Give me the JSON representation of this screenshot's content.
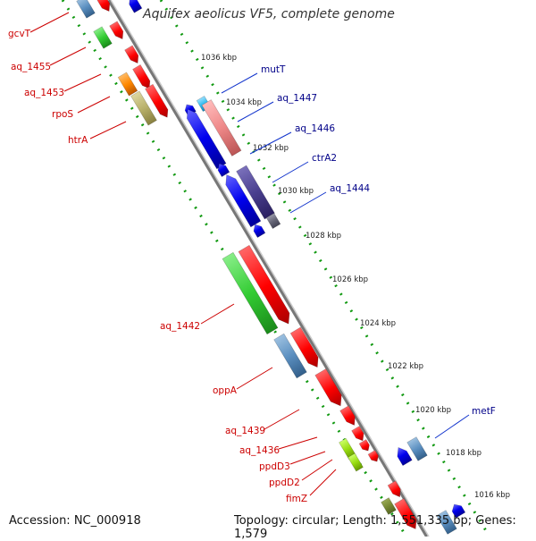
{
  "header": {
    "title": "Aquifex aeolicus VF5, complete genome"
  },
  "footer": {
    "accession": "Accession: NC_000918",
    "topology": "Topology: circular; Length: 1,551,335 bp; Genes: 1,579"
  },
  "genes_left": [
    "gcvT",
    "aq_1455",
    "aq_1453",
    "rpoS",
    "htrA",
    "aq_1442",
    "oppA",
    "aq_1439",
    "aq_1436",
    "ppdD3",
    "ppdD2",
    "fimZ"
  ],
  "genes_right": [
    "mutT",
    "aq_1447",
    "aq_1446",
    "ctrA2",
    "aq_1444",
    "metF"
  ],
  "ticks": [
    "1036 kbp",
    "1034 kbp",
    "1032 kbp",
    "1030 kbp",
    "1028 kbp",
    "1026 kbp",
    "1024 kbp",
    "1022 kbp",
    "1020 kbp",
    "1018 kbp",
    "1016 kbp"
  ],
  "colors": {
    "forward_gene": "#ff0000",
    "reverse_gene": "#0000ff",
    "green_gene": "#33cc33",
    "steel_gene": "#5b8fc0",
    "olive_gene": "#b8b06a",
    "orange_gene": "#ff8800",
    "pink_gene": "#ee8888",
    "cyan_gene": "#33bbee",
    "purple_gene": "#4a3f8f",
    "grey_gene": "#666677",
    "lime_gene": "#99dd11",
    "backbone": "#888888",
    "dotted_track": "#119911",
    "left_label": "#cc0000",
    "right_label": "#000088"
  }
}
